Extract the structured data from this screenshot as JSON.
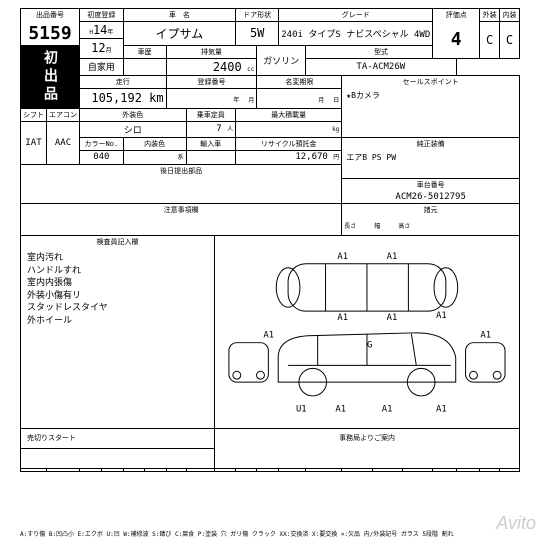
{
  "header": {
    "lot_lbl": "出品番号",
    "lot_no": "5159",
    "badge": "初出品",
    "reg_lbl": "初度登録",
    "reg_era": "H",
    "reg_year": "14",
    "reg_year_suf": "年",
    "reg_month": "12",
    "reg_month_suf": "月",
    "name_lbl": "車　名",
    "name": "イプサム",
    "door_lbl": "ドア形状",
    "door": "5W",
    "grade_lbl": "グレード",
    "grade": "240i タイプS ナビスペシャル 4WD",
    "score_lbl": "評価点",
    "score": "4",
    "ext_lbl": "外装",
    "ext_score": "C",
    "int_lbl": "内装",
    "int_score": "C",
    "hist_lbl": "車歴",
    "hist": "自家用",
    "disp_lbl": "排気量",
    "disp_val": "2400",
    "disp_unit": "cc",
    "fuel": "ガソリン",
    "model_lbl": "型式",
    "model": "TA-ACM26W"
  },
  "row3": {
    "odo_lbl": "走行",
    "odo": "105,192 km",
    "inspect_lbl": "登録番号",
    "inspect_y": "年",
    "inspect_m": "月",
    "expire_lbl": "名変期限",
    "expire_m": "月",
    "expire_d": "日",
    "sales_lbl": "セールスポイント",
    "sales": "★Bカメラ"
  },
  "row4": {
    "shift_lbl": "シフト",
    "ac_lbl": "エアコン",
    "shift": "IAT",
    "ac": "AAC",
    "extcol_lbl": "外装色",
    "extcol": "シロ",
    "colno_lbl": "カラーNo.",
    "colno": "040",
    "intcol_lbl": "内装色",
    "intcol_suf": "系",
    "seat_lbl": "乗車定員",
    "seat": "7",
    "seat_unit": "人",
    "load_lbl": "最大積載量",
    "load_unit": "kg",
    "import_lbl": "輸入車",
    "recycle_lbl": "リサイクル預託金",
    "recycle": "12,670",
    "recycle_unit": "円",
    "equip_lbl": "純正装備",
    "equip": "エアB PS PW"
  },
  "row5": {
    "later_lbl": "後日提出部品",
    "caution_lbl": "注意事項欄",
    "chassis_lbl": "車台番号",
    "chassis": "ACM26-5012795",
    "dim_lbl": "諸元",
    "len_lbl": "長さ",
    "wid_lbl": "幅",
    "hei_lbl": "高さ"
  },
  "inspect": {
    "lbl": "検査員記入欄",
    "notes": [
      "室内汚れ",
      "ハンドルすれ",
      "室内内張傷",
      "外装小傷有リ",
      "スタッドレスタイヤ",
      "外ホイール"
    ]
  },
  "diagram": {
    "marks": [
      "A1",
      "A1",
      "A1",
      "A1",
      "A1",
      "A1",
      "A1",
      "A1",
      "A1",
      "A1",
      "U1",
      "G"
    ],
    "stroke": "#000"
  },
  "footer": {
    "start_lbl": "売切りスタート",
    "office_lbl": "事務局よりご案内"
  },
  "legend": "A:すり傷 B:凹凸小 E:エクボ U:凹 W:補修波 S:錆び C:腐食 P:塗装 穴 ガリ傷 クラック          XX:交換済 X:要交換 ×:欠品 内/外装記号 ガラス 5段階 割れ",
  "watermark": "Avito"
}
